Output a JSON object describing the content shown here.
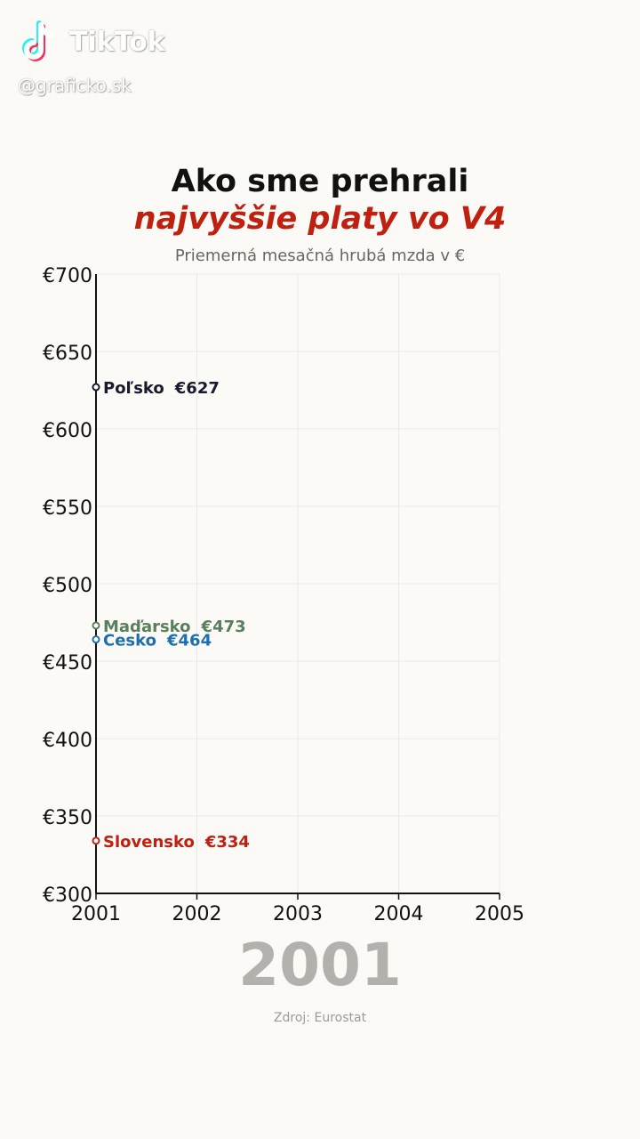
{
  "overlay": {
    "app_name": "TikTok",
    "handle": "@graficko.sk"
  },
  "header": {
    "title_line1": "Ako sme prehrali",
    "title_line2": "najvyššie platy vo V4",
    "subtitle": "Priemerná mesačná hrubá mzda v €"
  },
  "footer": {
    "current_year": "2001",
    "source": "Zdroj: Eurostat"
  },
  "colors": {
    "title_accent": "#c0200f",
    "poland": "#1a1a2e",
    "hungary": "#5a7f5d",
    "czechia": "#1c6fb0",
    "slovakia": "#c0200f"
  },
  "chart_data": {
    "type": "line",
    "xlim": [
      2001,
      2005
    ],
    "ylim": [
      300,
      700
    ],
    "x_ticks": [
      "2001",
      "2002",
      "2003",
      "2004",
      "2005"
    ],
    "y_ticks": [
      "€300",
      "€350",
      "€400",
      "€450",
      "€500",
      "€550",
      "€600",
      "€650",
      "€700"
    ],
    "grid": true,
    "series": [
      {
        "name": "Poľsko",
        "x": [
          2001
        ],
        "values": [
          627
        ],
        "label_value": "€627",
        "color": "#1a1a2e"
      },
      {
        "name": "Maďarsko",
        "x": [
          2001
        ],
        "values": [
          473
        ],
        "label_value": "€473",
        "color": "#5a7f5d"
      },
      {
        "name": "Cesko",
        "x": [
          2001
        ],
        "values": [
          464
        ],
        "label_value": "€464",
        "color": "#1c6fb0"
      },
      {
        "name": "Slovensko",
        "x": [
          2001
        ],
        "values": [
          334
        ],
        "label_value": "€334",
        "color": "#c0200f"
      }
    ]
  }
}
